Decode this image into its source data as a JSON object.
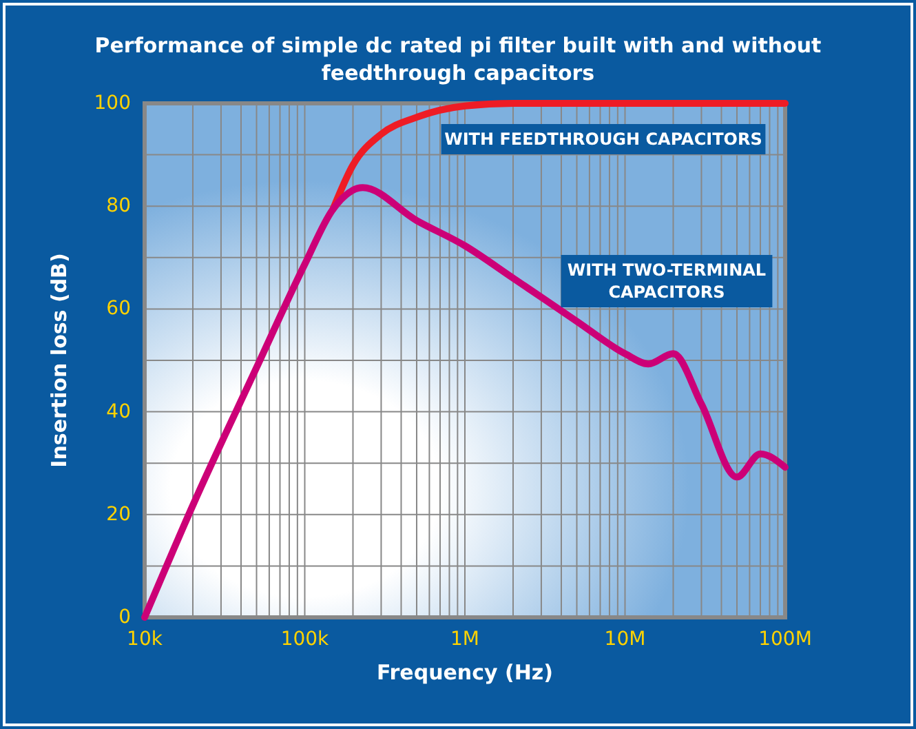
{
  "chart_data": {
    "type": "line",
    "title": "Performance of simple dc rated pi filter built with and without feedthrough capacitors",
    "xlabel": "Frequency (Hz)",
    "ylabel": "Insertion loss (dB)",
    "log": "x",
    "grid": true,
    "marker": "none",
    "line_style": "solid",
    "xlim": [
      10000,
      100000000
    ],
    "ylim": [
      0,
      100
    ],
    "xticks": [
      {
        "value": 10000,
        "label": "10k"
      },
      {
        "value": 20000,
        "label": null
      },
      {
        "value": 30000,
        "label": null
      },
      {
        "value": 40000,
        "label": null
      },
      {
        "value": 50000,
        "label": null
      },
      {
        "value": 60000,
        "label": null
      },
      {
        "value": 70000,
        "label": null
      },
      {
        "value": 80000,
        "label": null
      },
      {
        "value": 90000,
        "label": null
      },
      {
        "value": 100000,
        "label": "100k"
      },
      {
        "value": 200000,
        "label": null
      },
      {
        "value": 300000,
        "label": null
      },
      {
        "value": 400000,
        "label": null
      },
      {
        "value": 500000,
        "label": null
      },
      {
        "value": 600000,
        "label": null
      },
      {
        "value": 700000,
        "label": null
      },
      {
        "value": 800000,
        "label": null
      },
      {
        "value": 900000,
        "label": null
      },
      {
        "value": 1000000,
        "label": "1M"
      },
      {
        "value": 2000000,
        "label": null
      },
      {
        "value": 3000000,
        "label": null
      },
      {
        "value": 4000000,
        "label": null
      },
      {
        "value": 5000000,
        "label": null
      },
      {
        "value": 6000000,
        "label": null
      },
      {
        "value": 7000000,
        "label": null
      },
      {
        "value": 8000000,
        "label": null
      },
      {
        "value": 9000000,
        "label": null
      },
      {
        "value": 10000000,
        "label": "10M"
      },
      {
        "value": 20000000,
        "label": null
      },
      {
        "value": 30000000,
        "label": null
      },
      {
        "value": 40000000,
        "label": null
      },
      {
        "value": 50000000,
        "label": null
      },
      {
        "value": 60000000,
        "label": null
      },
      {
        "value": 70000000,
        "label": null
      },
      {
        "value": 80000000,
        "label": null
      },
      {
        "value": 90000000,
        "label": null
      },
      {
        "value": 100000000,
        "label": "100M"
      }
    ],
    "yticks": [
      0,
      {
        "value": 10,
        "label": null
      },
      20,
      {
        "value": 30,
        "label": null
      },
      40,
      {
        "value": 50,
        "label": null
      },
      60,
      {
        "value": 70,
        "label": null
      },
      80,
      {
        "value": 90,
        "label": null
      },
      100
    ],
    "series": [
      {
        "name": "WITH FEEDTHROUGH CAPACITORS",
        "color": "#ee1c25",
        "x": [
          150000,
          200000,
          300000,
          500000,
          1000000,
          2000000,
          10000000,
          100000000
        ],
        "values": [
          79.4,
          88,
          94,
          97.3,
          99.5,
          100,
          100,
          100
        ]
      },
      {
        "name": "WITH TWO-TERMINAL CAPACITORS",
        "color": "#cc0077",
        "x": [
          10000,
          20000,
          50000,
          100000,
          150000,
          230000,
          500000,
          1000000,
          2000000,
          5000000,
          10000000,
          14000000,
          20000000,
          30000000,
          50000000,
          70000000,
          100000000
        ],
        "values": [
          0,
          21.8,
          48.6,
          68.7,
          79.4,
          83.6,
          77.2,
          72.3,
          66,
          57.6,
          51.3,
          49.3,
          51.3,
          41.5,
          27.3,
          31.8,
          29.2
        ]
      }
    ]
  }
}
